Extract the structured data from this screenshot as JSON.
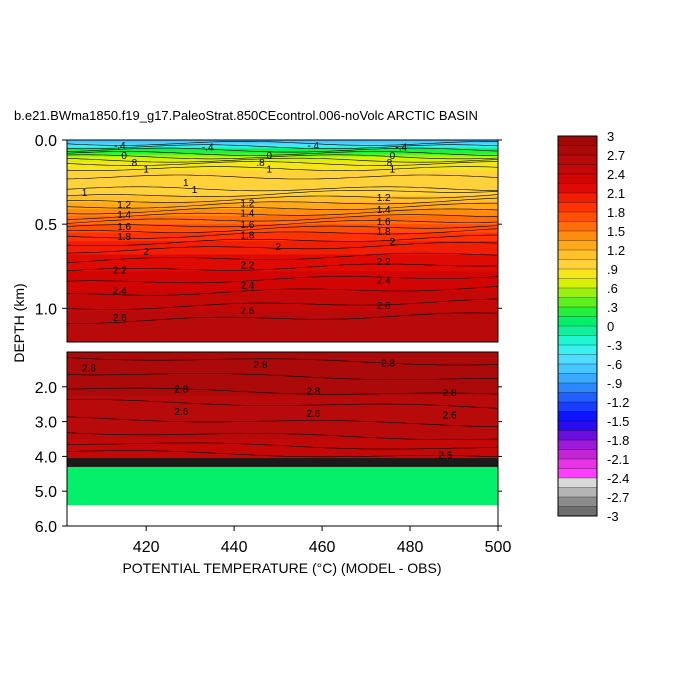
{
  "chart_data": {
    "type": "heatmap",
    "title": "b.e21.BWma1850.f19_g17.PaleoStrat.850CEcontrol.006-noVolc ARCTIC BASIN",
    "xlabel": "POTENTIAL TEMPERATURE (°C) (MODEL - OBS)",
    "ylabel": "DEPTH (km)",
    "xlim": [
      402,
      500
    ],
    "x_ticks": [
      "420",
      "440",
      "460",
      "480",
      "500"
    ],
    "x_tick_values": [
      420,
      440,
      460,
      480,
      500
    ],
    "upper_panel": {
      "ylim": [
        0.0,
        1.2
      ],
      "y_ticks": [
        "0.0",
        "0.5",
        "1.0"
      ],
      "y_tick_values": [
        0.0,
        0.5,
        1.0
      ],
      "profile": [
        {
          "depth": 0.0,
          "value": -0.8
        },
        {
          "depth": 0.03,
          "value": -0.5
        },
        {
          "depth": 0.06,
          "value": 0.1
        },
        {
          "depth": 0.1,
          "value": 0.6
        },
        {
          "depth": 0.15,
          "value": 0.85
        },
        {
          "depth": 0.22,
          "value": 0.95
        },
        {
          "depth": 0.3,
          "value": 1.0
        },
        {
          "depth": 0.35,
          "value": 1.1
        },
        {
          "depth": 0.4,
          "value": 1.3
        },
        {
          "depth": 0.45,
          "value": 1.5
        },
        {
          "depth": 0.5,
          "value": 1.65
        },
        {
          "depth": 0.55,
          "value": 1.8
        },
        {
          "depth": 0.6,
          "value": 1.95
        },
        {
          "depth": 0.65,
          "value": 2.05
        },
        {
          "depth": 0.75,
          "value": 2.2
        },
        {
          "depth": 0.85,
          "value": 2.35
        },
        {
          "depth": 0.95,
          "value": 2.45
        },
        {
          "depth": 1.05,
          "value": 2.6
        },
        {
          "depth": 1.2,
          "value": 2.7
        }
      ],
      "contour_labels": [
        {
          "text": "-.4",
          "x": 414,
          "depth": 0.03
        },
        {
          "text": "-.4",
          "x": 434,
          "depth": 0.04
        },
        {
          "text": "-.4",
          "x": 458,
          "depth": 0.03
        },
        {
          "text": "-.4",
          "x": 478,
          "depth": 0.04
        },
        {
          "text": "0",
          "x": 415,
          "depth": 0.09
        },
        {
          "text": "0",
          "x": 448,
          "depth": 0.09
        },
        {
          "text": "0",
          "x": 476,
          "depth": 0.09
        },
        {
          "text": ".8",
          "x": 417,
          "depth": 0.13
        },
        {
          "text": ".8",
          "x": 446,
          "depth": 0.13
        },
        {
          "text": ".8",
          "x": 475,
          "depth": 0.13
        },
        {
          "text": "1",
          "x": 420,
          "depth": 0.17
        },
        {
          "text": "1",
          "x": 448,
          "depth": 0.17
        },
        {
          "text": "1",
          "x": 476,
          "depth": 0.17
        },
        {
          "text": "1",
          "x": 429,
          "depth": 0.25
        },
        {
          "text": "1",
          "x": 406,
          "depth": 0.31
        },
        {
          "text": "1",
          "x": 431,
          "depth": 0.29
        },
        {
          "text": "1.2",
          "x": 415,
          "depth": 0.38
        },
        {
          "text": "1.2",
          "x": 443,
          "depth": 0.37
        },
        {
          "text": "1.2",
          "x": 474,
          "depth": 0.34
        },
        {
          "text": "1.4",
          "x": 415,
          "depth": 0.44
        },
        {
          "text": "1.4",
          "x": 443,
          "depth": 0.43
        },
        {
          "text": "1.4",
          "x": 474,
          "depth": 0.41
        },
        {
          "text": "1.6",
          "x": 415,
          "depth": 0.51
        },
        {
          "text": "1.6",
          "x": 443,
          "depth": 0.5
        },
        {
          "text": "1.6",
          "x": 474,
          "depth": 0.48
        },
        {
          "text": "1.8",
          "x": 415,
          "depth": 0.57
        },
        {
          "text": "1.8",
          "x": 443,
          "depth": 0.56
        },
        {
          "text": "1.8",
          "x": 474,
          "depth": 0.54
        },
        {
          "text": "2",
          "x": 420,
          "depth": 0.66
        },
        {
          "text": "2",
          "x": 450,
          "depth": 0.63
        },
        {
          "text": "2",
          "x": 476,
          "depth": 0.6
        },
        {
          "text": "2.2",
          "x": 414,
          "depth": 0.77
        },
        {
          "text": "2.2",
          "x": 443,
          "depth": 0.74
        },
        {
          "text": "2.2",
          "x": 474,
          "depth": 0.72
        },
        {
          "text": "2.4",
          "x": 414,
          "depth": 0.89
        },
        {
          "text": "2.4",
          "x": 443,
          "depth": 0.86
        },
        {
          "text": "2.4",
          "x": 474,
          "depth": 0.83
        },
        {
          "text": "2.6",
          "x": 414,
          "depth": 1.05
        },
        {
          "text": "2.6",
          "x": 443,
          "depth": 1.01
        },
        {
          "text": "2.6",
          "x": 474,
          "depth": 0.98
        }
      ]
    },
    "lower_panel": {
      "ylim": [
        1.0,
        6.0
      ],
      "y_ticks": [
        "2.0",
        "3.0",
        "4.0",
        "5.0",
        "6.0"
      ],
      "y_tick_values": [
        2.0,
        3.0,
        4.0,
        5.0,
        6.0
      ],
      "profile": [
        {
          "depth": 1.0,
          "value": 2.85
        },
        {
          "depth": 1.8,
          "value": 2.8
        },
        {
          "depth": 2.5,
          "value": 2.65
        },
        {
          "depth": 3.5,
          "value": 2.55
        },
        {
          "depth": 4.1,
          "value": 2.5
        }
      ],
      "bottom_depth": 4.3,
      "bottom_value": 0.0,
      "no_data_below": 5.4,
      "contour_labels": [
        {
          "text": "2.8",
          "x": 407,
          "depth": 1.45
        },
        {
          "text": "2.8",
          "x": 446,
          "depth": 1.35
        },
        {
          "text": "2.8",
          "x": 475,
          "depth": 1.3
        },
        {
          "text": "2.8",
          "x": 428,
          "depth": 2.05
        },
        {
          "text": "2.8",
          "x": 458,
          "depth": 2.1
        },
        {
          "text": "2.8",
          "x": 489,
          "depth": 2.15
        },
        {
          "text": "2.6",
          "x": 428,
          "depth": 2.7
        },
        {
          "text": "2.6",
          "x": 458,
          "depth": 2.75
        },
        {
          "text": "2.6",
          "x": 489,
          "depth": 2.8
        },
        {
          "text": "2.6",
          "x": 488,
          "depth": 3.95
        }
      ]
    },
    "colorbar": {
      "ticks": [
        "3",
        "2.7",
        "2.4",
        "2.1",
        "1.8",
        "1.5",
        "1.2",
        ".9",
        ".6",
        ".3",
        "0",
        "-.3",
        "-.6",
        "-.9",
        "-1.2",
        "-1.5",
        "-1.8",
        "-2.1",
        "-2.4",
        "-2.7",
        "-3"
      ],
      "min": -3,
      "max": 3
    }
  }
}
